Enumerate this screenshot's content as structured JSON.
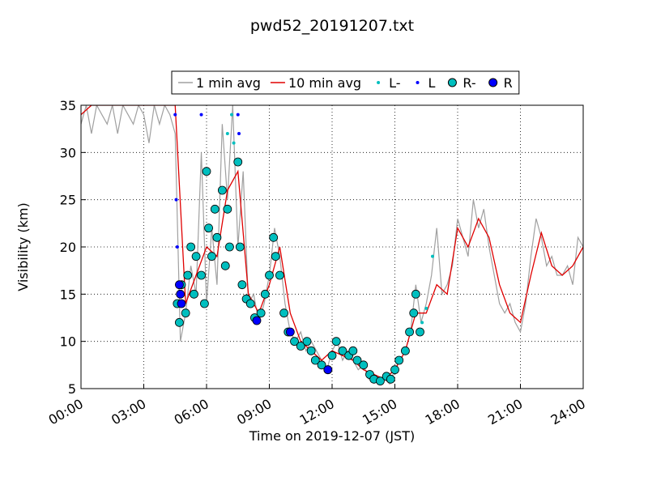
{
  "chart_data": {
    "type": "line",
    "title": "pwd52_20191207.txt",
    "x_label": "Time on 2019-12-07 (JST)",
    "y_label": "Visibility (km)",
    "xlim": [
      0,
      24
    ],
    "xticks": [
      {
        "value": 0,
        "label": "00:00"
      },
      {
        "value": 3,
        "label": "03:00"
      },
      {
        "value": 6,
        "label": "06:00"
      },
      {
        "value": 9,
        "label": "09:00"
      },
      {
        "value": 12,
        "label": "12:00"
      },
      {
        "value": 15,
        "label": "15:00"
      },
      {
        "value": 18,
        "label": "18:00"
      },
      {
        "value": 21,
        "label": "21:00"
      },
      {
        "value": 24,
        "label": "24:00"
      }
    ],
    "ylim": [
      5,
      35
    ],
    "yticks": [
      5,
      10,
      15,
      20,
      25,
      30,
      35
    ],
    "grid": true,
    "legend": "top",
    "series": [
      {
        "name": "1 min avg",
        "color": "#a0a0a0",
        "style": "line",
        "x": [
          0,
          0.25,
          0.5,
          0.75,
          1,
          1.25,
          1.5,
          1.75,
          2,
          2.25,
          2.5,
          2.75,
          3,
          3.25,
          3.5,
          3.75,
          4,
          4.25,
          4.5,
          4.75,
          5,
          5.25,
          5.5,
          5.75,
          6,
          6.25,
          6.5,
          6.75,
          7,
          7.25,
          7.5,
          7.75,
          8,
          8.25,
          8.5,
          8.75,
          9,
          9.25,
          9.5,
          9.75,
          10,
          10.25,
          10.5,
          10.75,
          11,
          11.25,
          11.5,
          11.75,
          12,
          12.25,
          12.5,
          12.75,
          13,
          13.25,
          13.5,
          13.75,
          14,
          14.25,
          14.5,
          14.75,
          15,
          15.25,
          15.5,
          15.75,
          16,
          16.25,
          16.5,
          16.75,
          17,
          17.25,
          17.5,
          17.75,
          18,
          18.25,
          18.5,
          18.75,
          19,
          19.25,
          19.5,
          19.75,
          20,
          20.25,
          20.5,
          20.75,
          21,
          21.25,
          21.5,
          21.75,
          22,
          22.25,
          22.5,
          22.75,
          23,
          23.25,
          23.5,
          23.75,
          24
        ],
        "values": [
          33,
          35,
          32,
          35,
          34,
          33,
          35,
          32,
          35,
          34,
          33,
          35,
          34,
          31,
          35,
          33,
          35,
          34,
          32,
          10,
          13,
          18,
          15,
          30,
          14,
          22,
          16,
          33,
          25,
          35,
          20,
          28,
          14,
          15,
          12,
          14,
          17,
          22,
          19,
          14,
          11,
          10,
          11,
          9,
          10,
          9,
          8,
          7,
          9,
          10,
          8,
          9,
          8,
          7,
          7.5,
          6,
          6.5,
          6,
          6,
          5.5,
          7,
          8,
          9,
          11,
          16,
          12,
          14,
          17,
          22,
          15,
          16,
          18,
          23,
          21,
          19,
          25,
          22,
          24,
          20,
          17,
          14,
          13,
          14,
          12,
          11,
          14,
          19,
          23,
          21,
          18,
          19,
          17,
          17,
          18,
          16,
          21,
          20
        ]
      },
      {
        "name": "10 min avg",
        "color": "#e00000",
        "style": "line",
        "x": [
          0,
          0.5,
          1,
          1.5,
          2,
          2.5,
          3,
          3.5,
          4,
          4.5,
          5,
          5.5,
          6,
          6.5,
          7,
          7.5,
          8,
          8.5,
          9,
          9.5,
          10,
          10.5,
          11,
          11.5,
          12,
          12.5,
          13,
          13.5,
          14,
          14.5,
          15,
          15.5,
          16,
          16.5,
          17,
          17.5,
          18,
          18.5,
          19,
          19.5,
          20,
          20.5,
          21,
          21.5,
          22,
          22.5,
          23,
          23.5,
          24
        ],
        "values": [
          34,
          35,
          35,
          35,
          35,
          35,
          35,
          35,
          35,
          35,
          14,
          17,
          20,
          19,
          26,
          28,
          15,
          13,
          16,
          20,
          13,
          10,
          9,
          8,
          9,
          8.5,
          8,
          7,
          6.5,
          6,
          7,
          9,
          13,
          13,
          16,
          15,
          22,
          20,
          23,
          21,
          16,
          13,
          12,
          17,
          21.5,
          18,
          17,
          18,
          20
        ]
      },
      {
        "name": "L-",
        "color": "#00bfbf",
        "style": "dot",
        "x": [
          7.0,
          7.2,
          7.3,
          16.3,
          16.5,
          16.8
        ],
        "values": [
          32,
          34,
          31,
          12,
          13.5,
          19
        ]
      },
      {
        "name": "L",
        "color": "#0000ff",
        "style": "dot",
        "x": [
          4.5,
          4.55,
          4.6,
          5.75,
          7.5,
          7.55
        ],
        "values": [
          34,
          25,
          20,
          34,
          34,
          32
        ]
      },
      {
        "name": "R-",
        "color": "#00bfbf",
        "style": "circle",
        "x": [
          4.6,
          4.7,
          4.8,
          5,
          5.1,
          5.25,
          5.4,
          5.5,
          5.75,
          5.9,
          6,
          6.1,
          6.25,
          6.4,
          6.5,
          6.75,
          6.9,
          7,
          7.1,
          7.5,
          7.6,
          7.7,
          7.9,
          8.1,
          8.3,
          8.6,
          8.8,
          9,
          9.2,
          9.3,
          9.5,
          9.7,
          9.9,
          10.2,
          10.5,
          10.8,
          11,
          11.2,
          11.5,
          11.8,
          12,
          12.2,
          12.5,
          12.8,
          13,
          13.2,
          13.5,
          13.8,
          14,
          14.3,
          14.6,
          14.8,
          15,
          15.2,
          15.5,
          15.7,
          15.9,
          16,
          16.2
        ],
        "values": [
          14,
          12,
          16,
          13,
          17,
          20,
          15,
          19,
          17,
          14,
          28,
          22,
          19,
          24,
          21,
          26,
          18,
          24,
          20,
          29,
          20,
          16,
          14.5,
          14,
          12.5,
          13,
          15,
          17,
          21,
          19,
          17,
          13,
          11,
          10,
          9.5,
          10,
          9,
          8,
          7.5,
          7,
          8.5,
          10,
          9,
          8.5,
          9,
          8,
          7.5,
          6.5,
          6,
          5.8,
          6.3,
          6,
          7,
          8,
          9,
          11,
          13,
          15,
          11
        ]
      },
      {
        "name": "R",
        "color": "#0000ff",
        "style": "circle",
        "x": [
          4.7,
          4.75,
          4.8,
          8.4,
          10,
          11.8
        ],
        "values": [
          16,
          15,
          14,
          12.2,
          11,
          7
        ]
      }
    ]
  }
}
